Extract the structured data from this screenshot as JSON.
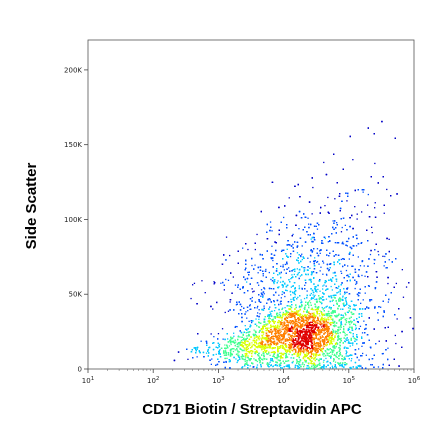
{
  "chart_data": {
    "type": "scatter",
    "subtype": "flow-cytometry-density-dot-plot",
    "xlabel": "CD71 Biotin / Streptavidin APC",
    "ylabel": "Side Scatter",
    "x_scale": "log",
    "y_scale": "linear",
    "xlim": [
      10,
      1000000
    ],
    "ylim": [
      0,
      220000
    ],
    "x_ticks": [
      {
        "value": 10,
        "label": "10",
        "exp": "1"
      },
      {
        "value": 100,
        "label": "10",
        "exp": "2"
      },
      {
        "value": 1000,
        "label": "10",
        "exp": "3"
      },
      {
        "value": 10000,
        "label": "10",
        "exp": "4"
      },
      {
        "value": 100000,
        "label": "10",
        "exp": "5"
      },
      {
        "value": 1000000,
        "label": "10",
        "exp": "6"
      }
    ],
    "y_ticks": [
      {
        "value": 0,
        "label": "0"
      },
      {
        "value": 50000,
        "label": "50K"
      },
      {
        "value": 100000,
        "label": "100K"
      },
      {
        "value": 150000,
        "label": "150K"
      },
      {
        "value": 200000,
        "label": "200K"
      }
    ],
    "grid": false,
    "legend": "none",
    "color_scale": [
      "#0000c8",
      "#0050ff",
      "#00c8ff",
      "#40ff90",
      "#d8ff00",
      "#ff8000",
      "#e00000"
    ],
    "populations": [
      {
        "x_center": 20000,
        "x_log_spread": 0.42,
        "y_center": 24000,
        "y_spread": 11000,
        "weight": 0.55
      },
      {
        "x_center": 30000,
        "x_log_spread": 0.65,
        "y_center": 55000,
        "y_spread": 30000,
        "weight": 0.33
      },
      {
        "x_center": 2500,
        "x_log_spread": 0.35,
        "y_center": 12000,
        "y_spread": 6000,
        "weight": 0.12
      }
    ],
    "event_count": 9000
  }
}
